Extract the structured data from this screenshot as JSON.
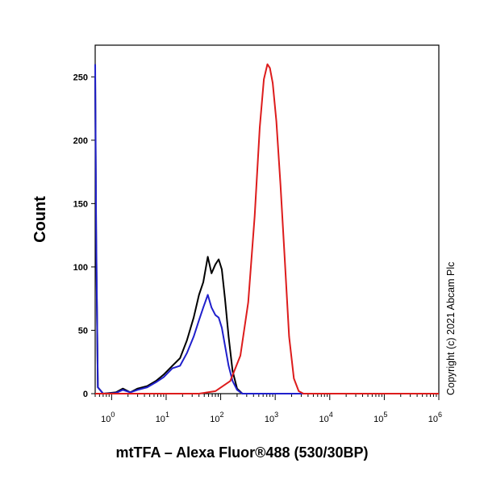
{
  "chart_data": {
    "type": "line",
    "title": "",
    "xlabel": "mtTFA – Alexa Fluor®488 (530/30BP)",
    "ylabel": "Count",
    "xscale": "log",
    "xlim": [
      0.5,
      1000000
    ],
    "ylim": [
      0,
      275
    ],
    "grid": false,
    "legend": "none",
    "x_ticks": [
      {
        "value": 1,
        "base": "10",
        "exp": "0"
      },
      {
        "value": 10,
        "base": "10",
        "exp": "1"
      },
      {
        "value": 100,
        "base": "10",
        "exp": "2"
      },
      {
        "value": 1000,
        "base": "10",
        "exp": "3"
      },
      {
        "value": 10000,
        "base": "10",
        "exp": "4"
      },
      {
        "value": 100000,
        "base": "10",
        "exp": "5"
      },
      {
        "value": 1000000,
        "base": "10",
        "exp": "6"
      }
    ],
    "y_ticks": [
      0,
      50,
      100,
      150,
      200,
      250
    ],
    "series": [
      {
        "color": "#000000",
        "points": [
          [
            0.5,
            250
          ],
          [
            0.52,
            120
          ],
          [
            0.56,
            5
          ],
          [
            0.7,
            0
          ],
          [
            1.2,
            1
          ],
          [
            1.6,
            4
          ],
          [
            2.2,
            1
          ],
          [
            3.0,
            4
          ],
          [
            4.5,
            6
          ],
          [
            6.5,
            10
          ],
          [
            9,
            15
          ],
          [
            13,
            22
          ],
          [
            18,
            28
          ],
          [
            24,
            42
          ],
          [
            32,
            60
          ],
          [
            40,
            78
          ],
          [
            48,
            88
          ],
          [
            58,
            108
          ],
          [
            68,
            95
          ],
          [
            80,
            102
          ],
          [
            92,
            106
          ],
          [
            105,
            98
          ],
          [
            120,
            75
          ],
          [
            140,
            45
          ],
          [
            165,
            18
          ],
          [
            200,
            4
          ],
          [
            250,
            0
          ],
          [
            1000000,
            0
          ]
        ]
      },
      {
        "color": "#2020cc",
        "points": [
          [
            0.5,
            260
          ],
          [
            0.52,
            130
          ],
          [
            0.56,
            5
          ],
          [
            0.7,
            0
          ],
          [
            1.2,
            0.5
          ],
          [
            1.6,
            3
          ],
          [
            2.2,
            1
          ],
          [
            3.0,
            3
          ],
          [
            4.5,
            5
          ],
          [
            6.5,
            9
          ],
          [
            9,
            13
          ],
          [
            13,
            20
          ],
          [
            18,
            22
          ],
          [
            24,
            32
          ],
          [
            32,
            45
          ],
          [
            40,
            58
          ],
          [
            48,
            68
          ],
          [
            58,
            78
          ],
          [
            68,
            68
          ],
          [
            80,
            62
          ],
          [
            92,
            60
          ],
          [
            105,
            52
          ],
          [
            120,
            38
          ],
          [
            140,
            22
          ],
          [
            165,
            10
          ],
          [
            200,
            3
          ],
          [
            250,
            0
          ],
          [
            1000000,
            0
          ]
        ]
      },
      {
        "color": "#dd1c1c",
        "points": [
          [
            0.5,
            0
          ],
          [
            40,
            0
          ],
          [
            80,
            2
          ],
          [
            150,
            10
          ],
          [
            230,
            30
          ],
          [
            320,
            72
          ],
          [
            420,
            140
          ],
          [
            520,
            210
          ],
          [
            620,
            248
          ],
          [
            720,
            260
          ],
          [
            800,
            257
          ],
          [
            900,
            245
          ],
          [
            1050,
            215
          ],
          [
            1250,
            165
          ],
          [
            1500,
            105
          ],
          [
            1800,
            45
          ],
          [
            2200,
            12
          ],
          [
            2700,
            2
          ],
          [
            3300,
            0
          ],
          [
            1000000,
            0
          ]
        ]
      }
    ],
    "annotations": [
      "Copyright (c) 2021 Abcam Plc"
    ]
  }
}
